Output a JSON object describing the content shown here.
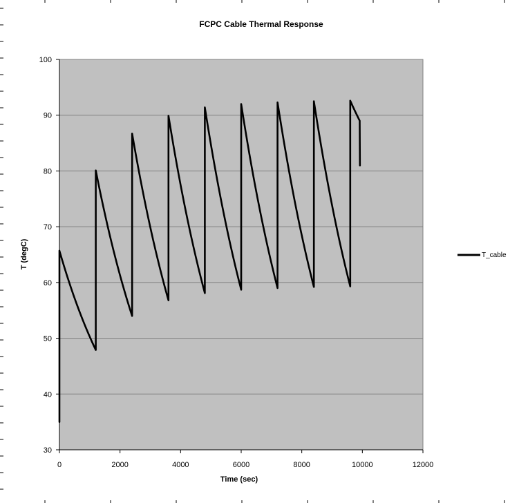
{
  "chart_data": {
    "type": "line",
    "title": "FCPC Cable Thermal Response",
    "xlabel": "Time (sec)",
    "ylabel": "T (degC)",
    "xlim": [
      0,
      12000
    ],
    "ylim": [
      30,
      100
    ],
    "x_ticks": [
      0,
      2000,
      4000,
      6000,
      8000,
      10000,
      12000
    ],
    "y_ticks": [
      30,
      40,
      50,
      60,
      70,
      80,
      90,
      100
    ],
    "x_tick_labels": [
      "0",
      "2000",
      "4000",
      "6000",
      "8000",
      "10000",
      "12000"
    ],
    "y_tick_labels": [
      "30",
      "40",
      "50",
      "60",
      "70",
      "80",
      "90",
      "100"
    ],
    "grid": "horizontal",
    "plot_background": "#c0c0c0",
    "legend_position": "right",
    "series": [
      {
        "name": "T_cable",
        "color": "#000000",
        "cycles": [
          {
            "start": 0,
            "end": 1200,
            "low": 35,
            "peak": 65.7,
            "trough": 47.9
          },
          {
            "start": 1200,
            "end": 2400,
            "peak": 80.1,
            "trough": 54.0
          },
          {
            "start": 2400,
            "end": 3600,
            "peak": 86.7,
            "trough": 56.8
          },
          {
            "start": 3600,
            "end": 4800,
            "peak": 89.9,
            "trough": 58.1
          },
          {
            "start": 4800,
            "end": 6000,
            "peak": 91.4,
            "trough": 58.7
          },
          {
            "start": 6000,
            "end": 7200,
            "peak": 92.0,
            "trough": 59.0
          },
          {
            "start": 7200,
            "end": 8400,
            "peak": 92.3,
            "trough": 59.2
          },
          {
            "start": 8400,
            "end": 9600,
            "peak": 92.5,
            "trough": 59.3
          },
          {
            "start": 9600,
            "end": 9920,
            "peak": 92.6,
            "trough": 81.0
          }
        ]
      }
    ]
  }
}
